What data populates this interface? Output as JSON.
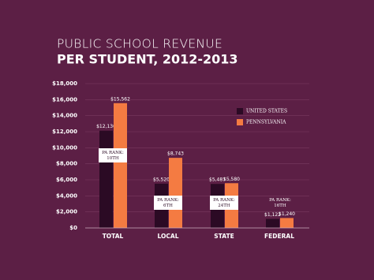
{
  "chart_data": {
    "type": "bar",
    "title_line1": "PUBLIC SCHOOL REVENUE",
    "title_line2": "PER STUDENT, 2012-2013",
    "categories": [
      "TOTAL",
      "LOCAL",
      "STATE",
      "FEDERAL"
    ],
    "series": [
      {
        "name": "UNITED STATES",
        "color": "#2b0a24",
        "values": [
          12130,
          5520,
          5487,
          1122
        ],
        "value_labels": [
          "$12,130",
          "$5,520",
          "$5,487",
          "$1,122"
        ]
      },
      {
        "name": "PENNSYLVANIA",
        "color": "#f47b42",
        "values": [
          15562,
          8743,
          5580,
          1240
        ],
        "value_labels": [
          "$15,562",
          "$8,743",
          "$5,580",
          "$1,240"
        ]
      }
    ],
    "rank_labels": [
      [
        "PA RANK:",
        "10TH"
      ],
      [
        "PA RANK:",
        "6TH"
      ],
      [
        "PA RANK:",
        "24TH"
      ],
      [
        "PA RANK:",
        "16TH"
      ]
    ],
    "ylim": [
      0,
      18000
    ],
    "yticks": [
      {
        "value": 0,
        "label": "$0"
      },
      {
        "value": 2000,
        "label": "$2,000"
      },
      {
        "value": 4000,
        "label": "$4,000"
      },
      {
        "value": 6000,
        "label": "$6,000"
      },
      {
        "value": 8000,
        "label": "$8,000"
      },
      {
        "value": 10000,
        "label": "$10,000"
      },
      {
        "value": 12000,
        "label": "$12,000"
      },
      {
        "value": 14000,
        "label": "$14,000"
      },
      {
        "value": 16000,
        "label": "$16,000"
      },
      {
        "value": 18000,
        "label": "$18,000"
      }
    ],
    "grid": true,
    "background": "#5c1f45"
  }
}
